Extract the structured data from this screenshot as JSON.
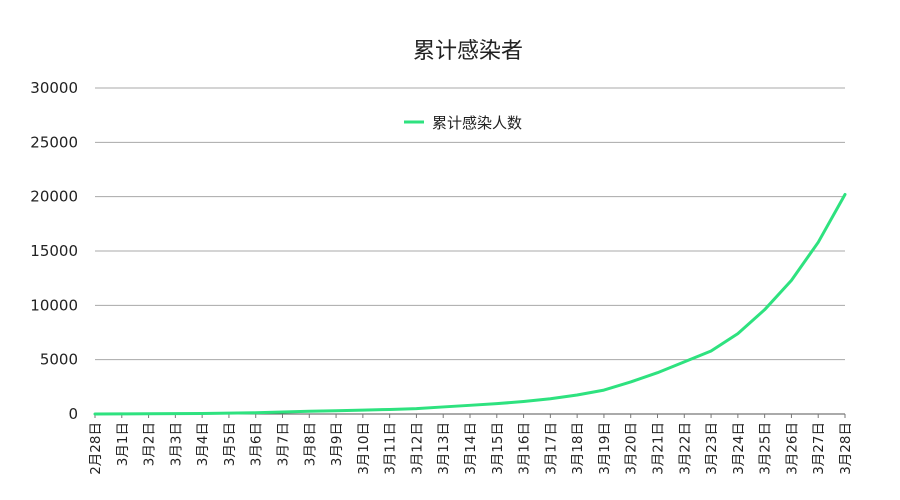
{
  "chart_data": {
    "type": "line",
    "title": "累计感染者",
    "xlabel": "",
    "ylabel": "",
    "ylim": [
      0,
      30000
    ],
    "yticks": [
      0,
      5000,
      10000,
      15000,
      20000,
      25000,
      30000
    ],
    "grid": true,
    "legend_position": "top-center",
    "categories": [
      "2月28日",
      "3月1日",
      "3月2日",
      "3月3日",
      "3月4日",
      "3月5日",
      "3月6日",
      "3月7日",
      "3月8日",
      "3月9日",
      "3月10日",
      "3月11日",
      "3月12日",
      "3月13日",
      "3月14日",
      "3月15日",
      "3月16日",
      "3月17日",
      "3月18日",
      "3月19日",
      "3月20日",
      "3月21日",
      "3月22日",
      "3月23日",
      "3月24日",
      "3月25日",
      "3月26日",
      "3月27日",
      "3月28日"
    ],
    "series": [
      {
        "name": "累计感染人数",
        "color": "#2ee27f",
        "values": [
          5,
          10,
          20,
          30,
          50,
          80,
          110,
          180,
          250,
          300,
          360,
          420,
          500,
          650,
          800,
          950,
          1150,
          1400,
          1750,
          2200,
          2950,
          3800,
          4800,
          5800,
          7400,
          9600,
          12300,
          15800,
          20200
        ]
      }
    ]
  }
}
